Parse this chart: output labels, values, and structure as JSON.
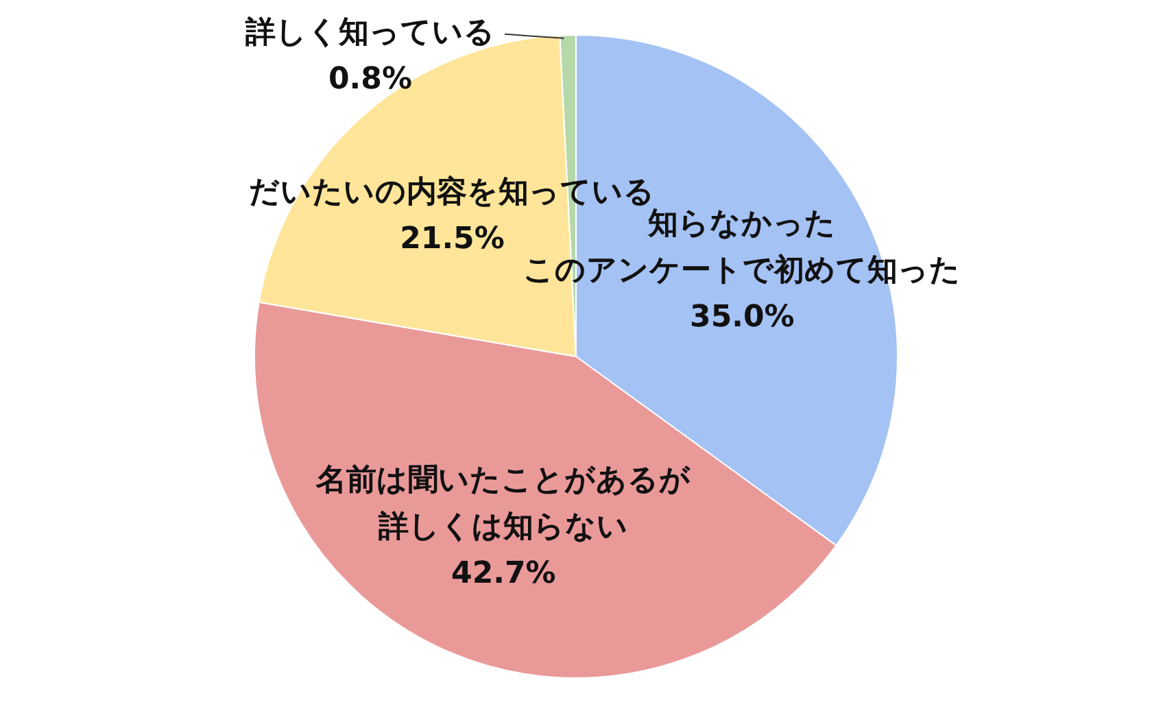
{
  "chart_data": {
    "type": "pie",
    "categories": [
      "知らなかったこのアンケートで初めて知った",
      "名前は聞いたことがあるが詳しくは知らない",
      "だいたいの内容を知っている",
      "詳しく知っている"
    ],
    "values": [
      35.0,
      42.7,
      21.5,
      0.8
    ],
    "colors": [
      "#a4c2f4",
      "#ea9999",
      "#ffe599",
      "#b6d7a8"
    ],
    "value_labels": [
      "35.0%",
      "42.7%",
      "21.5%",
      "0.8%"
    ],
    "legend": false
  }
}
